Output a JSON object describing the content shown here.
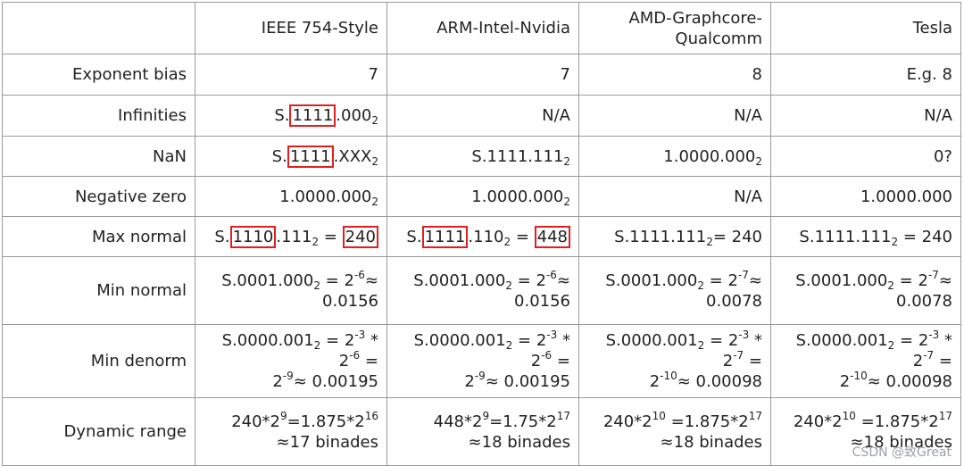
{
  "header": [
    "",
    "IEEE 754-Style",
    "ARM-Intel-Nvidia",
    "AMD-Graphcore-\nQualcomm",
    "Tesla"
  ],
  "labels": {
    "bias": "Exponent bias",
    "inf": "Infinities",
    "nan": "NaN",
    "negzero": "Negative zero",
    "maxnorm": "Max normal",
    "minnorm": "Min normal",
    "mindenorm": "Min denorm",
    "dyn": "Dynamic range"
  },
  "cells": {
    "bias": [
      "7",
      "7",
      "8",
      "E.g. 8"
    ],
    "inf_c1": [
      "S.",
      "1111",
      ".000",
      "2"
    ],
    "na": "N/A",
    "nan_c1": [
      "S.",
      "1111",
      ".XXX",
      "2"
    ],
    "nan_c2": [
      "S.1111.111",
      "2"
    ],
    "nan_c3": [
      "1.0000.000",
      "2"
    ],
    "nan_c4": "0?",
    "negzero": [
      "1.0000.000",
      "2"
    ],
    "negzero_c4": "1.0000.000",
    "max_c1": [
      "S.",
      "1110",
      ".111",
      "2",
      " = ",
      "240"
    ],
    "max_c2": [
      "S.",
      "1111",
      ".110",
      "2",
      " = ",
      "448"
    ],
    "max_c3": [
      "S.1111.111",
      "2",
      "= 240"
    ],
    "max_c4": [
      "S.1111.111",
      "2",
      " = 240"
    ],
    "min_c12": [
      "S.0001.000",
      "2",
      " = 2",
      "-6",
      "≈",
      "0.0156"
    ],
    "min_c34": [
      "S.0001.000",
      "2",
      " = 2",
      "-7",
      "≈",
      "0.0078"
    ],
    "den_a": [
      "S.0000.001",
      "2",
      " = 2",
      "-3",
      " *"
    ],
    "den_b6": [
      "2",
      "-6",
      " ="
    ],
    "den_b7": [
      "2",
      "-7",
      " ="
    ],
    "den_c12": [
      "2",
      "-9",
      "≈ 0.00195"
    ],
    "den_c34": [
      "2",
      "-10",
      "≈ 0.00098"
    ],
    "dyn_c1": [
      "240*2",
      "9",
      "=1.875*2",
      "16",
      "≈17 binades"
    ],
    "dyn_c2": [
      "448*2",
      "9",
      "=1.75*2",
      "17",
      "≈18 binades"
    ],
    "dyn_c34": [
      "240*2",
      "10",
      " =1.875*2",
      "17",
      "≈18 binades"
    ]
  },
  "watermark": "CSDN @致Great"
}
